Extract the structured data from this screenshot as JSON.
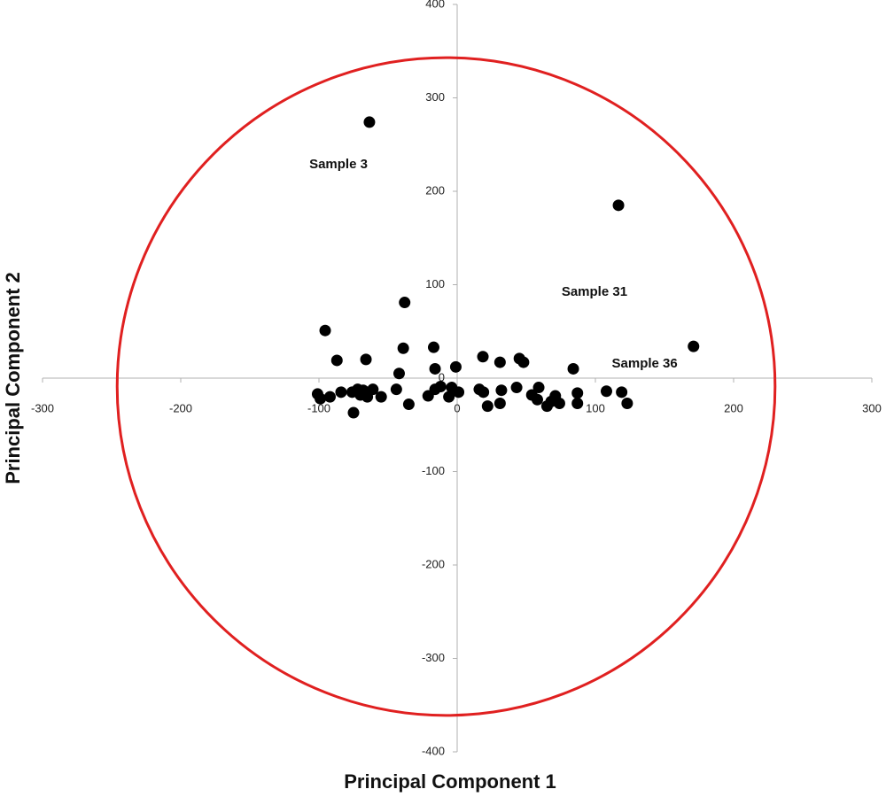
{
  "chart_data": {
    "type": "scatter",
    "x_label": "Principal Component 1",
    "y_label": "Principal Component 2",
    "xlim": [
      -300,
      300
    ],
    "ylim": [
      -400,
      400
    ],
    "xticks": [
      -300,
      -200,
      -100,
      0,
      100,
      200,
      300
    ],
    "yticks": [
      -400,
      -300,
      -200,
      -100,
      0,
      100,
      200,
      300,
      400
    ],
    "color": "#000000",
    "x": [
      -63.5,
      116.7,
      171,
      -38,
      -95.5,
      -87,
      -66,
      -39,
      -17,
      -16,
      -42,
      -1,
      18.6,
      31,
      45,
      48,
      84,
      -101,
      -99,
      -92,
      -84,
      -75,
      -76,
      -72,
      -70,
      -68,
      -65,
      -61,
      -55,
      -44,
      -35,
      -21,
      -16,
      -12,
      -6,
      -4,
      1,
      16,
      19,
      22,
      32,
      31,
      43,
      54,
      59,
      58,
      65,
      68,
      71,
      74,
      87,
      87,
      108,
      119,
      123
    ],
    "y": [
      274,
      185,
      34,
      81,
      51,
      19,
      20,
      32,
      33,
      10,
      5,
      12,
      23,
      17,
      21,
      17,
      10,
      -17,
      -22,
      -20,
      -15,
      -37,
      -15,
      -12,
      -18,
      -13,
      -20,
      -12,
      -20,
      -12,
      -28,
      -19,
      -12,
      -9,
      -20,
      -10,
      -15,
      -12,
      -15,
      -30,
      -13,
      -27,
      -10,
      -18,
      -10,
      -23,
      -30,
      -25,
      -19,
      -27,
      -16,
      -27,
      -14,
      -15,
      -27
    ],
    "annotations": [
      {
        "text": "Sample 3",
        "index": 0
      },
      {
        "text": "Sample 31",
        "index": 1
      },
      {
        "text": "Sample 36",
        "index": 2
      }
    ],
    "ellipse": {
      "center": [
        -8,
        -9
      ],
      "radius": [
        238,
        352
      ],
      "color": "#e02020"
    }
  }
}
